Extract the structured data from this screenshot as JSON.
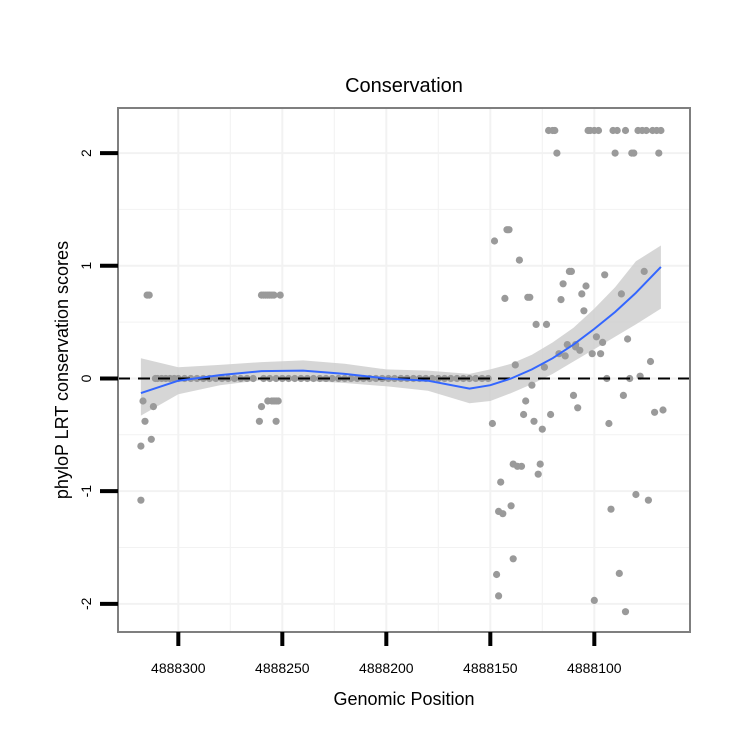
{
  "chart_data": {
    "type": "scatter",
    "title": "Conservation",
    "xlabel": "Genomic Position",
    "ylabel": "phyloP LRT conservation scores",
    "x_reversed": true,
    "xlim": [
      4888329,
      4888054
    ],
    "ylim": [
      -2.25,
      2.4
    ],
    "xticks": [
      4888300,
      4888250,
      4888200,
      4888150,
      4888100
    ],
    "xtick_labels": [
      "4888300",
      "4888250",
      "4888200",
      "4888150",
      "4888100"
    ],
    "yticks": [
      -2,
      -1,
      0,
      1,
      2
    ],
    "ytick_labels": [
      "-2",
      "-1",
      "0",
      "1",
      "2"
    ],
    "grid": true,
    "legend": "none",
    "reference_line": {
      "y": 0,
      "style": "dashed"
    },
    "colors": {
      "points": "#9a9a9a",
      "smooth": "#3366ff",
      "ribbon": "#cccccc",
      "grid": "#f2f2f2",
      "frame": "#7f7f7f"
    },
    "points": [
      [
        4888318,
        -1.08
      ],
      [
        4888318,
        -0.6
      ],
      [
        4888317,
        -0.2
      ],
      [
        4888316,
        -0.38
      ],
      [
        4888315,
        0.74
      ],
      [
        4888314,
        0.74
      ],
      [
        4888313,
        -0.54
      ],
      [
        4888312,
        -0.25
      ],
      [
        4888311,
        0
      ],
      [
        4888310,
        0
      ],
      [
        4888308,
        0
      ],
      [
        4888306,
        0
      ],
      [
        4888304,
        0
      ],
      [
        4888302,
        0
      ],
      [
        4888300,
        0
      ],
      [
        4888297,
        0
      ],
      [
        4888294,
        0
      ],
      [
        4888291,
        0
      ],
      [
        4888288,
        0
      ],
      [
        4888285,
        0
      ],
      [
        4888282,
        0
      ],
      [
        4888279,
        0
      ],
      [
        4888276,
        0
      ],
      [
        4888273,
        0
      ],
      [
        4888270,
        0
      ],
      [
        4888267,
        0
      ],
      [
        4888264,
        0
      ],
      [
        4888261,
        -0.38
      ],
      [
        4888260,
        -0.25
      ],
      [
        4888260,
        0.74
      ],
      [
        4888259,
        0.74
      ],
      [
        4888258,
        0.74
      ],
      [
        4888257,
        -0.2
      ],
      [
        4888257,
        0.74
      ],
      [
        4888256,
        0.74
      ],
      [
        4888255,
        -0.2
      ],
      [
        4888255,
        0.74
      ],
      [
        4888254,
        -0.2
      ],
      [
        4888254,
        0.74
      ],
      [
        4888253,
        -0.2
      ],
      [
        4888253,
        -0.38
      ],
      [
        4888252,
        -0.2
      ],
      [
        4888251,
        0.74
      ],
      [
        4888259,
        0
      ],
      [
        4888256,
        0
      ],
      [
        4888253,
        0
      ],
      [
        4888250,
        0
      ],
      [
        4888247,
        0
      ],
      [
        4888244,
        0
      ],
      [
        4888241,
        0
      ],
      [
        4888238,
        0
      ],
      [
        4888235,
        0
      ],
      [
        4888232,
        0
      ],
      [
        4888229,
        0
      ],
      [
        4888226,
        0
      ],
      [
        4888223,
        0
      ],
      [
        4888220,
        0
      ],
      [
        4888217,
        0
      ],
      [
        4888214,
        0
      ],
      [
        4888211,
        0
      ],
      [
        4888208,
        0
      ],
      [
        4888205,
        0
      ],
      [
        4888202,
        0
      ],
      [
        4888199,
        0
      ],
      [
        4888196,
        0
      ],
      [
        4888193,
        0
      ],
      [
        4888190,
        0
      ],
      [
        4888187,
        0
      ],
      [
        4888184,
        0
      ],
      [
        4888181,
        0
      ],
      [
        4888178,
        0
      ],
      [
        4888175,
        0
      ],
      [
        4888172,
        0
      ],
      [
        4888169,
        0
      ],
      [
        4888166,
        0
      ],
      [
        4888163,
        0
      ],
      [
        4888160,
        0
      ],
      [
        4888157,
        0
      ],
      [
        4888154,
        0
      ],
      [
        4888151,
        0
      ],
      [
        4888149,
        -0.4
      ],
      [
        4888148,
        1.22
      ],
      [
        4888147,
        -1.74
      ],
      [
        4888146,
        -1.93
      ],
      [
        4888146,
        -1.18
      ],
      [
        4888145,
        -0.92
      ],
      [
        4888144,
        -1.2
      ],
      [
        4888143,
        0.71
      ],
      [
        4888142,
        1.32
      ],
      [
        4888141,
        1.32
      ],
      [
        4888140,
        -1.13
      ],
      [
        4888139,
        -1.6
      ],
      [
        4888139,
        -0.76
      ],
      [
        4888138,
        0.12
      ],
      [
        4888137,
        -0.78
      ],
      [
        4888136,
        1.05
      ],
      [
        4888135,
        -0.78
      ],
      [
        4888134,
        -0.32
      ],
      [
        4888133,
        -0.2
      ],
      [
        4888132,
        0.72
      ],
      [
        4888131,
        0.72
      ],
      [
        4888130,
        -0.06
      ],
      [
        4888129,
        -0.38
      ],
      [
        4888128,
        0.48
      ],
      [
        4888127,
        -0.85
      ],
      [
        4888126,
        -0.76
      ],
      [
        4888125,
        -0.45
      ],
      [
        4888124,
        0.1
      ],
      [
        4888123,
        0.48
      ],
      [
        4888122,
        2.2
      ],
      [
        4888121,
        -0.32
      ],
      [
        4888120,
        2.2
      ],
      [
        4888119,
        2.2
      ],
      [
        4888118,
        2.0
      ],
      [
        4888117,
        0.22
      ],
      [
        4888116,
        0.7
      ],
      [
        4888115,
        0.84
      ],
      [
        4888114,
        0.2
      ],
      [
        4888113,
        0.3
      ],
      [
        4888112,
        0.95
      ],
      [
        4888111,
        0.95
      ],
      [
        4888110,
        -0.15
      ],
      [
        4888109,
        0.28
      ],
      [
        4888109,
        0.3
      ],
      [
        4888108,
        -0.26
      ],
      [
        4888107,
        0.25
      ],
      [
        4888106,
        0.75
      ],
      [
        4888105,
        0.6
      ],
      [
        4888104,
        0.82
      ],
      [
        4888103,
        2.2
      ],
      [
        4888102,
        2.2
      ],
      [
        4888101,
        0.22
      ],
      [
        4888100,
        2.2
      ],
      [
        4888100,
        -1.97
      ],
      [
        4888099,
        0.37
      ],
      [
        4888098,
        2.2
      ],
      [
        4888097,
        0.22
      ],
      [
        4888096,
        0.32
      ],
      [
        4888095,
        0.92
      ],
      [
        4888094,
        0
      ],
      [
        4888093,
        -0.4
      ],
      [
        4888092,
        -1.16
      ],
      [
        4888091,
        2.2
      ],
      [
        4888090,
        2.0
      ],
      [
        4888089,
        2.2
      ],
      [
        4888088,
        -1.73
      ],
      [
        4888087,
        0.75
      ],
      [
        4888086,
        -0.15
      ],
      [
        4888085,
        2.2
      ],
      [
        4888085,
        -2.07
      ],
      [
        4888084,
        0.35
      ],
      [
        4888083,
        0
      ],
      [
        4888082,
        2.0
      ],
      [
        4888081,
        2.0
      ],
      [
        4888080,
        -1.03
      ],
      [
        4888079,
        2.2
      ],
      [
        4888078,
        0.02
      ],
      [
        4888077,
        2.2
      ],
      [
        4888076,
        0.95
      ],
      [
        4888075,
        2.2
      ],
      [
        4888074,
        -1.08
      ],
      [
        4888073,
        0.15
      ],
      [
        4888072,
        2.2
      ],
      [
        4888071,
        -0.3
      ],
      [
        4888070,
        2.2
      ],
      [
        4888069,
        2.0
      ],
      [
        4888068,
        2.2
      ],
      [
        4888067,
        -0.28
      ]
    ],
    "smooth": {
      "x": [
        4888318,
        4888300,
        4888280,
        4888260,
        4888240,
        4888220,
        4888200,
        4888180,
        4888160,
        4888150,
        4888140,
        4888130,
        4888120,
        4888110,
        4888100,
        4888090,
        4888080,
        4888068
      ],
      "y": [
        -0.13,
        -0.02,
        0.03,
        0.065,
        0.07,
        0.04,
        0.0,
        -0.02,
        -0.09,
        -0.06,
        0.0,
        0.08,
        0.18,
        0.3,
        0.44,
        0.59,
        0.76,
        0.99
      ],
      "lower": [
        -0.33,
        -0.14,
        -0.06,
        -0.015,
        -0.02,
        -0.04,
        -0.07,
        -0.11,
        -0.22,
        -0.2,
        -0.13,
        -0.05,
        0.04,
        0.15,
        0.26,
        0.37,
        0.48,
        0.62
      ],
      "upper": [
        0.18,
        0.1,
        0.12,
        0.145,
        0.16,
        0.13,
        0.08,
        0.07,
        0.04,
        0.08,
        0.13,
        0.21,
        0.32,
        0.45,
        0.62,
        0.81,
        1.04,
        1.18
      ]
    }
  }
}
